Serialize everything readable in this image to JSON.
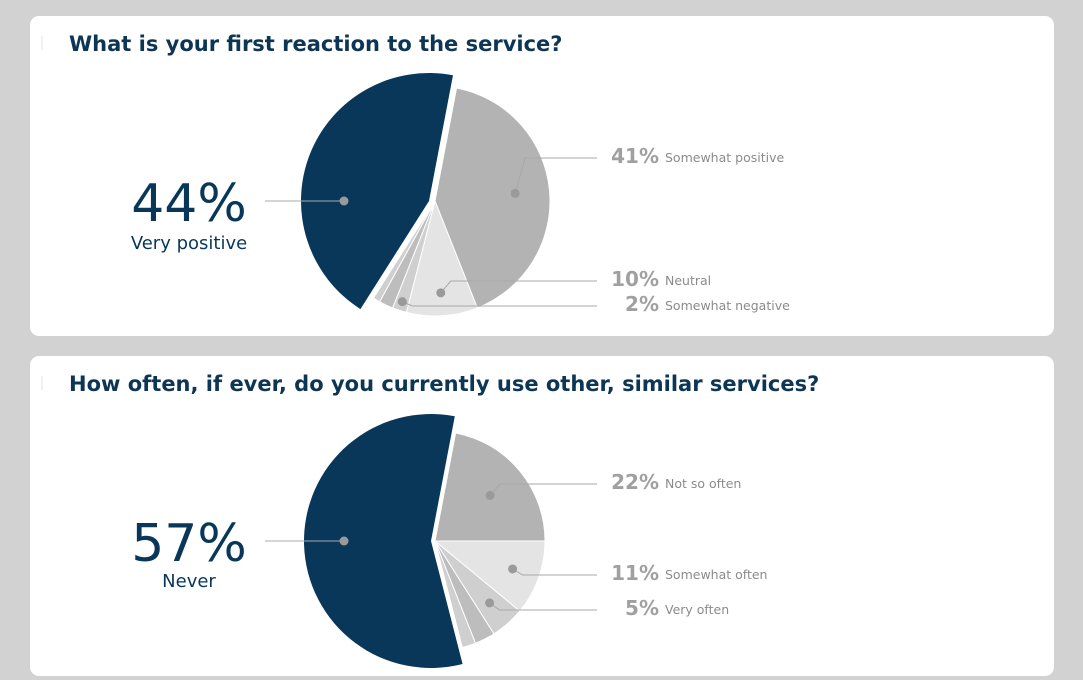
{
  "colors": {
    "primary": "#08375a",
    "slice2": "#b3b3b3",
    "slice3": "#e4e4e4",
    "slice4": "#cfcfcf",
    "slice5": "#bdbdbd",
    "label_gray": "#a0a0a0",
    "small_gray": "#8b8b8b",
    "leader": "#a8a8a8",
    "dot": "#9a9a9a"
  },
  "chart_data": [
    {
      "type": "pie",
      "title": "What is your first reaction to the service?",
      "slices": [
        {
          "label": "Very positive",
          "value": 44,
          "pct_text": "44%"
        },
        {
          "label": "Somewhat positive",
          "value": 41,
          "pct_text": "41%"
        },
        {
          "label": "Neutral",
          "value": 10,
          "pct_text": "10%"
        },
        {
          "label": "Somewhat negative",
          "value": 2,
          "pct_text": "2%"
        },
        {
          "label": "",
          "value": 2,
          "pct_text": ""
        },
        {
          "label": "",
          "value": 1,
          "pct_text": ""
        }
      ]
    },
    {
      "type": "pie",
      "title": "How often, if ever, do you currently use other, similar services?",
      "slices": [
        {
          "label": "Never",
          "value": 57,
          "pct_text": "57%"
        },
        {
          "label": "Not so often",
          "value": 22,
          "pct_text": "22%"
        },
        {
          "label": "Somewhat often",
          "value": 11,
          "pct_text": "11%"
        },
        {
          "label": "Very often",
          "value": 5,
          "pct_text": "5%"
        },
        {
          "label": "",
          "value": 3,
          "pct_text": ""
        },
        {
          "label": "",
          "value": 2,
          "pct_text": ""
        }
      ]
    }
  ]
}
